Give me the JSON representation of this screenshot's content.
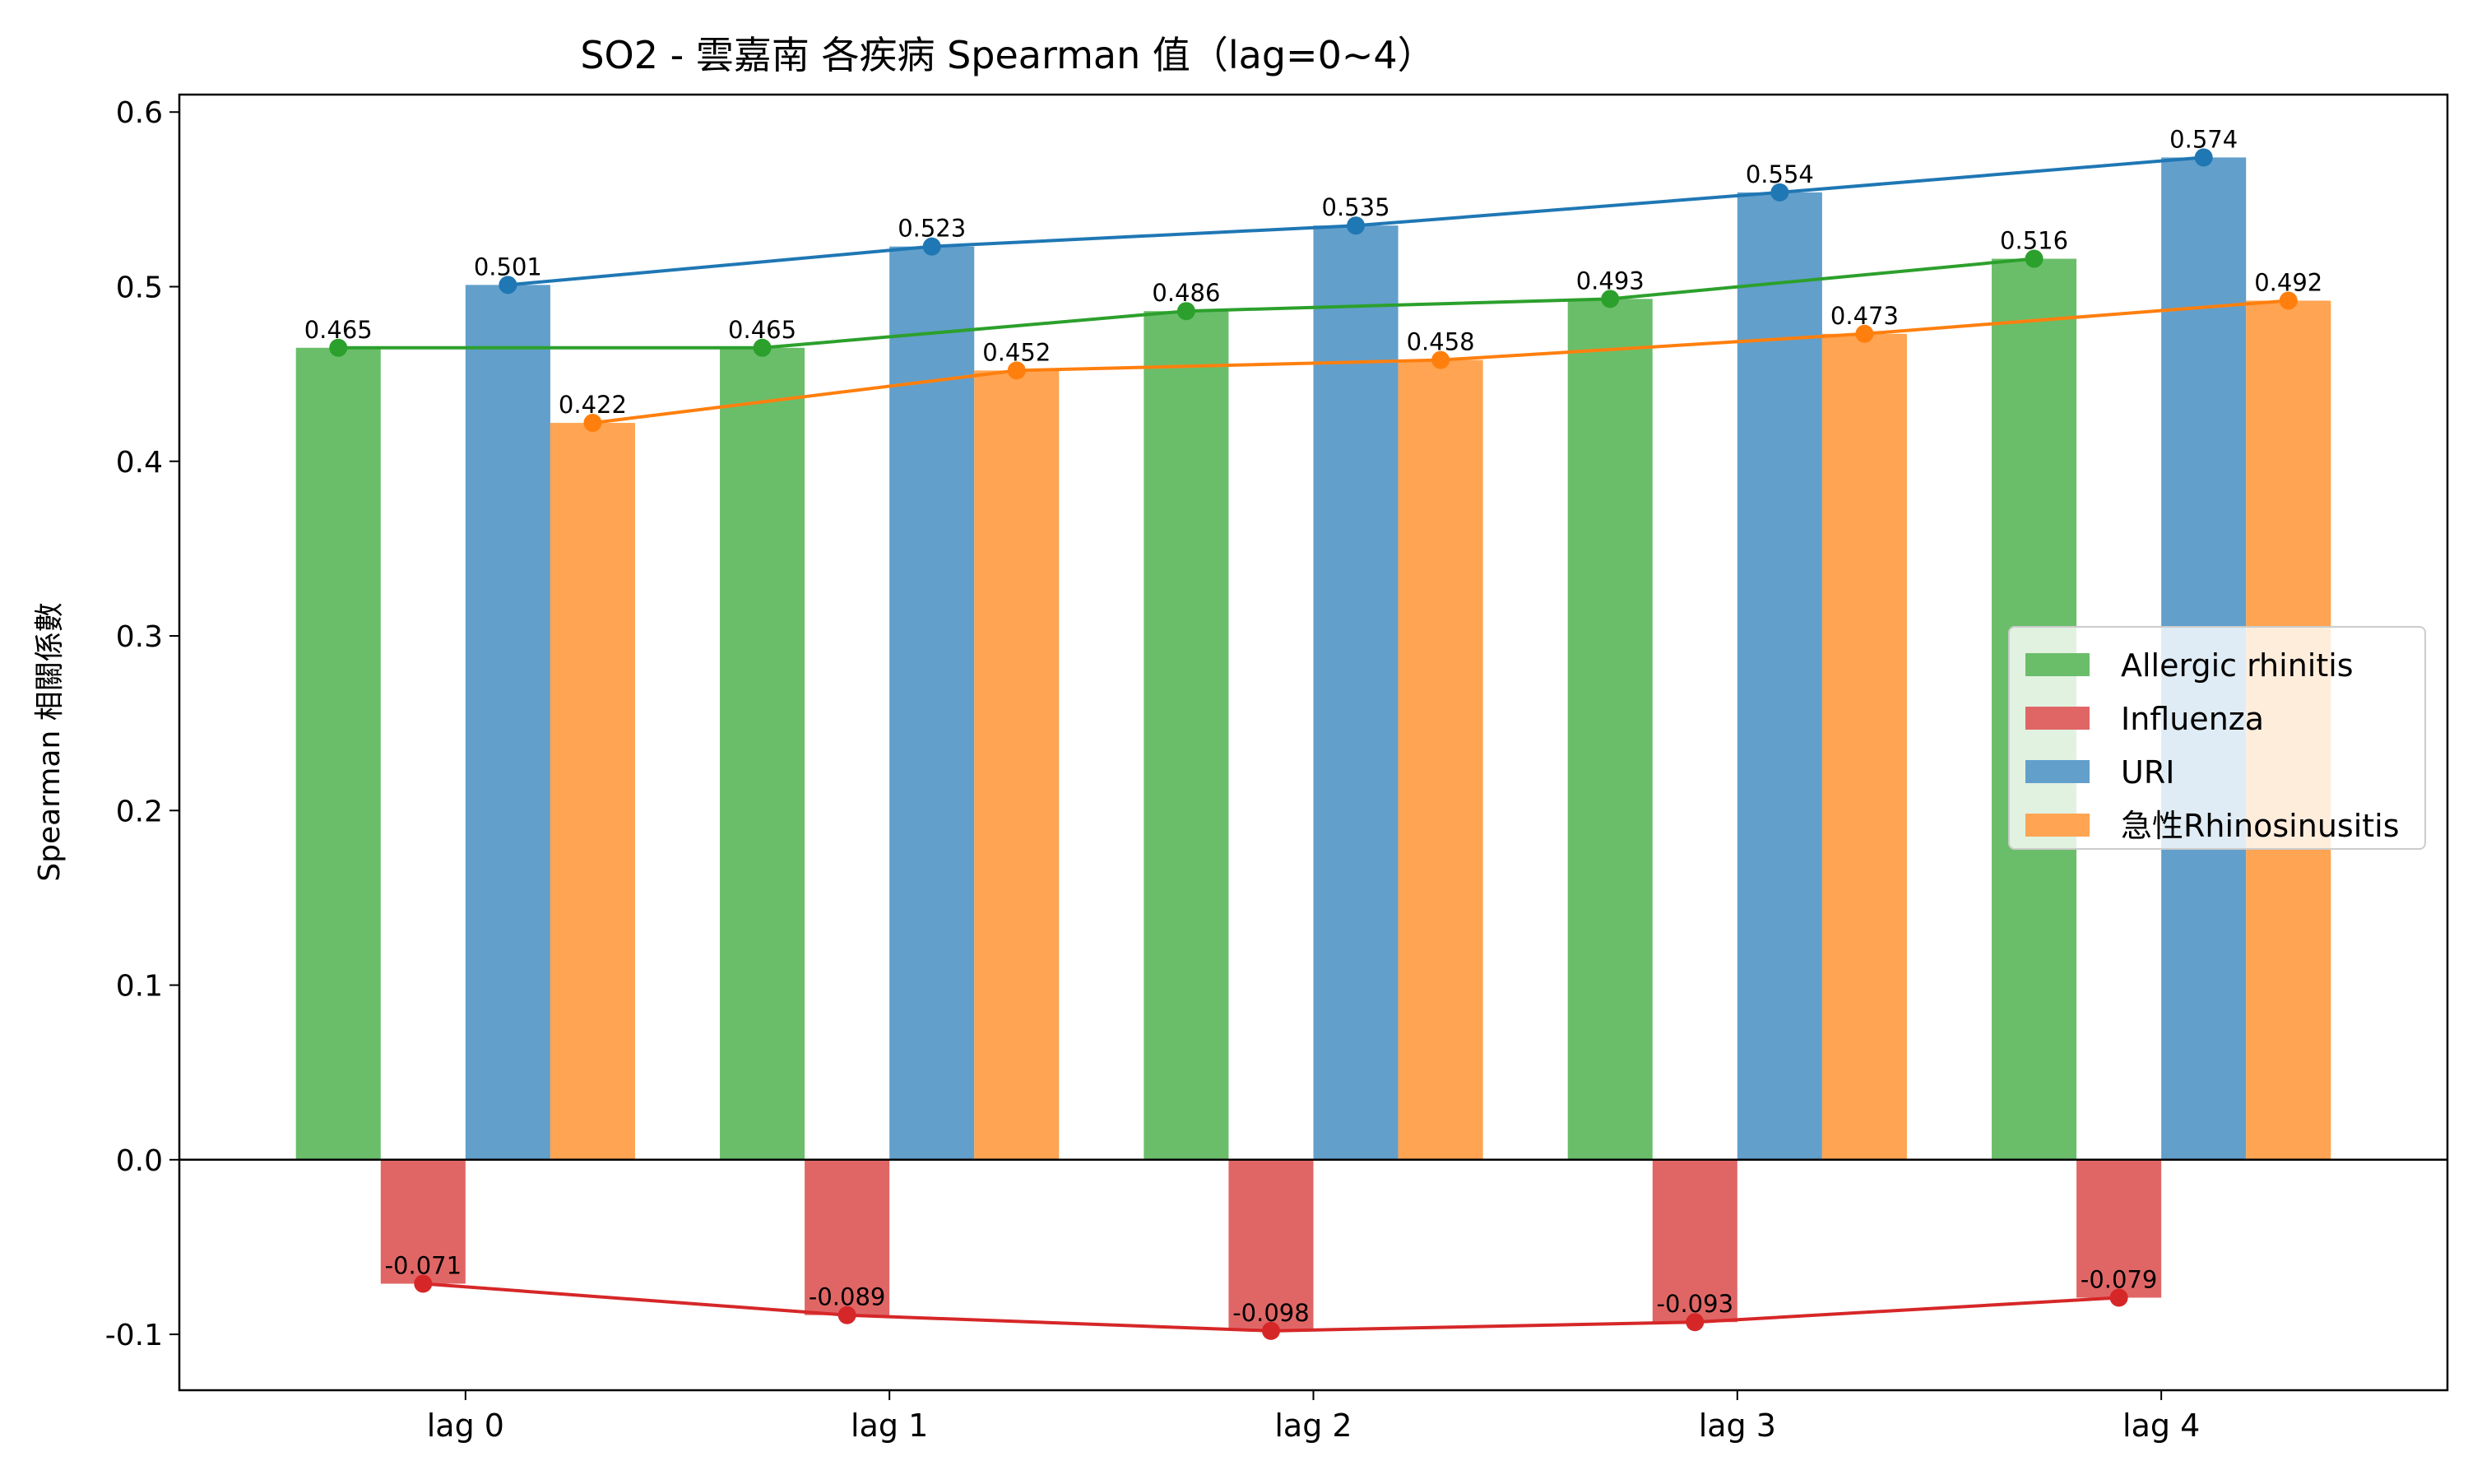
{
  "chart_data": {
    "type": "bar",
    "title": "SO2 - 雲嘉南 各疾病 Spearman 值（lag=0~4）",
    "xlabel": "",
    "ylabel": "Spearman 相關係數",
    "categories": [
      "lag 0",
      "lag 1",
      "lag 2",
      "lag 3",
      "lag 4"
    ],
    "ylim": [
      -0.132,
      0.61
    ],
    "yticks": [
      -0.1,
      0.0,
      0.1,
      0.2,
      0.3,
      0.4,
      0.5,
      0.6
    ],
    "ytick_labels": [
      "-0.1",
      "0.0",
      "0.1",
      "0.2",
      "0.3",
      "0.4",
      "0.5",
      "0.6"
    ],
    "grid": false,
    "legend_position": "center-right",
    "series": [
      {
        "name": "Allergic rhinitis",
        "values": [
          0.465,
          0.465,
          0.486,
          0.493,
          0.516
        ],
        "labels": [
          "0.465",
          "0.465",
          "0.486",
          "0.493",
          "0.516"
        ],
        "bar_color": "#6abe6a",
        "line_color": "#2ca02c"
      },
      {
        "name": "Influenza",
        "values": [
          -0.071,
          -0.089,
          -0.098,
          -0.093,
          -0.079
        ],
        "labels": [
          "-0.071",
          "-0.089",
          "-0.098",
          "-0.093",
          "-0.079"
        ],
        "bar_color": "#e06666",
        "line_color": "#d62728"
      },
      {
        "name": "URI",
        "values": [
          0.501,
          0.523,
          0.535,
          0.554,
          0.574
        ],
        "labels": [
          "0.501",
          "0.523",
          "0.535",
          "0.554",
          "0.574"
        ],
        "bar_color": "#629fcb",
        "line_color": "#1f77b4"
      },
      {
        "name": "急性Rhinosinusitis",
        "values": [
          0.422,
          0.452,
          0.458,
          0.473,
          0.492
        ],
        "labels": [
          "0.422",
          "0.452",
          "0.458",
          "0.473",
          "0.492"
        ],
        "bar_color": "#ffa452",
        "line_color": "#ff7f0e"
      }
    ]
  }
}
